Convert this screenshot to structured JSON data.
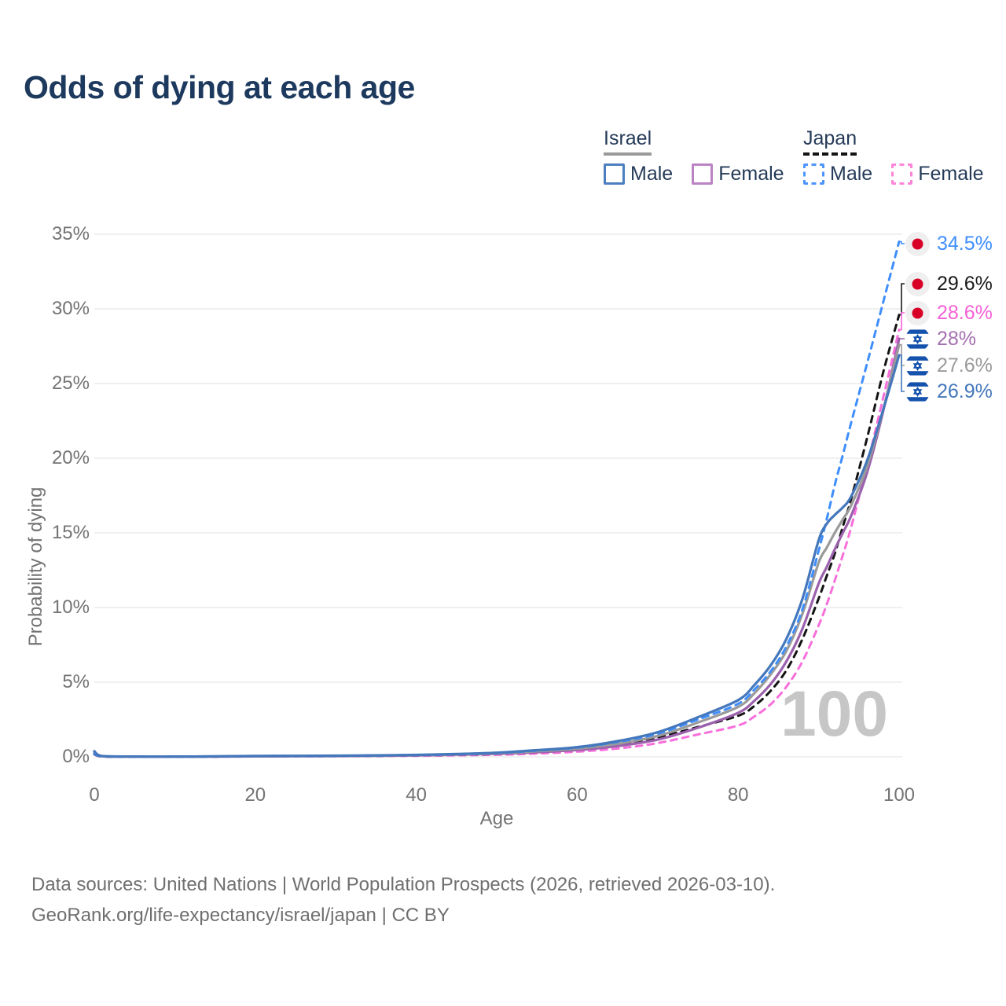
{
  "title": "Odds of dying at each age",
  "legend": {
    "groups": [
      {
        "country": "Israel",
        "line_style": "solid",
        "items": [
          {
            "label": "Male",
            "color": "#4d7fc0"
          },
          {
            "label": "Female",
            "color": "#bb82c4"
          }
        ]
      },
      {
        "country": "Japan",
        "line_style": "dashed",
        "items": [
          {
            "label": "Male",
            "color": "#4d94fb"
          },
          {
            "label": "Female",
            "color": "#fd85d8"
          }
        ]
      }
    ]
  },
  "y_axis": {
    "title": "Probability of dying",
    "ticks": [
      "35%",
      "30%",
      "25%",
      "20%",
      "15%",
      "10%",
      "5%",
      "0%"
    ]
  },
  "x_axis": {
    "title": "Age",
    "ticks": [
      "0",
      "20",
      "40",
      "60",
      "80",
      "100"
    ]
  },
  "watermark": "100",
  "end_labels": [
    {
      "key": "japan_male",
      "value": "34.5%",
      "flag": "japan",
      "color": "#3f8efc"
    },
    {
      "key": "japan_both",
      "value": "29.6%",
      "flag": "japan",
      "color": "#1a1a1a"
    },
    {
      "key": "japan_female",
      "value": "28.6%",
      "flag": "japan",
      "color": "#f65fd6"
    },
    {
      "key": "israel_female",
      "value": "28%",
      "flag": "israel",
      "color": "#a46fb0"
    },
    {
      "key": "israel_both",
      "value": "27.6%",
      "flag": "israel",
      "color": "#9a9a9a"
    },
    {
      "key": "israel_male",
      "value": "26.9%",
      "flag": "israel",
      "color": "#4477bb"
    }
  ],
  "footer": {
    "line1": "Data sources: United Nations | World Population Prospects (2026, retrieved 2026-03-10).",
    "line2": "GeoRank.org/life-expectancy/israel/japan | CC BY"
  },
  "chart_data": {
    "type": "line",
    "title": "Odds of dying at each age",
    "xlabel": "Age",
    "ylabel": "Probability of dying",
    "units": "percent",
    "xlim": [
      0,
      100
    ],
    "ylim": [
      0,
      35
    ],
    "grid": "horizontal-only",
    "legend_position": "top-right",
    "x": [
      0,
      1,
      5,
      10,
      15,
      20,
      25,
      30,
      35,
      40,
      45,
      50,
      55,
      60,
      65,
      70,
      75,
      80,
      82,
      84,
      86,
      88,
      90,
      91,
      92,
      93,
      94,
      96,
      98,
      100
    ],
    "series": [
      {
        "key": "japan_female",
        "name": "Japan Female",
        "color": "#f76fdb",
        "dash": true,
        "end_value": 28.6,
        "values": [
          0.17,
          0.02,
          0.008,
          0.008,
          0.015,
          0.025,
          0.03,
          0.04,
          0.05,
          0.07,
          0.1,
          0.14,
          0.22,
          0.35,
          0.56,
          0.92,
          1.5,
          2.1,
          2.7,
          3.5,
          4.7,
          6.4,
          8.8,
          10.2,
          11.8,
          13.5,
          15.3,
          19.5,
          24.0,
          28.6
        ]
      },
      {
        "key": "japan_both",
        "name": "Japan Both sexes",
        "color": "#141414",
        "dash": true,
        "end_value": 29.6,
        "values": [
          0.19,
          0.025,
          0.01,
          0.01,
          0.02,
          0.04,
          0.05,
          0.055,
          0.07,
          0.1,
          0.14,
          0.2,
          0.32,
          0.5,
          0.8,
          1.3,
          2.0,
          2.75,
          3.4,
          4.4,
          5.8,
          7.9,
          10.6,
          12.1,
          13.6,
          15.4,
          17.2,
          21.3,
          25.7,
          29.6
        ]
      },
      {
        "key": "israel_female",
        "name": "Israel Female",
        "color": "#9c61ad",
        "dash": false,
        "end_value": 28.0,
        "values": [
          0.32,
          0.04,
          0.015,
          0.015,
          0.02,
          0.03,
          0.04,
          0.05,
          0.07,
          0.1,
          0.14,
          0.2,
          0.31,
          0.46,
          0.72,
          1.15,
          1.95,
          2.95,
          3.75,
          4.85,
          6.4,
          8.6,
          11.6,
          12.7,
          13.9,
          15.0,
          16.1,
          19.0,
          23.1,
          28.0
        ]
      },
      {
        "key": "israel_both",
        "name": "Israel Both sexes",
        "color": "#9a9a9a",
        "dash": false,
        "end_value": 27.6,
        "values": [
          0.35,
          0.045,
          0.018,
          0.018,
          0.025,
          0.045,
          0.055,
          0.065,
          0.085,
          0.115,
          0.165,
          0.24,
          0.38,
          0.55,
          0.88,
          1.4,
          2.3,
          3.35,
          4.25,
          5.5,
          7.1,
          9.6,
          13.0,
          14.0,
          15.0,
          15.9,
          16.8,
          19.4,
          23.2,
          27.6
        ]
      },
      {
        "key": "japan_male",
        "name": "Japan Male",
        "color": "#3f8efc",
        "dash": true,
        "end_value": 34.5,
        "values": [
          0.22,
          0.03,
          0.012,
          0.012,
          0.025,
          0.05,
          0.06,
          0.07,
          0.09,
          0.12,
          0.17,
          0.26,
          0.42,
          0.62,
          1.0,
          1.55,
          2.5,
          3.55,
          4.5,
          5.7,
          7.4,
          9.9,
          13.8,
          15.9,
          18.2,
          20.2,
          22.3,
          26.3,
          30.4,
          34.5
        ]
      },
      {
        "key": "israel_male",
        "name": "Israel Male",
        "color": "#4477bb",
        "dash": false,
        "end_value": 26.9,
        "values": [
          0.38,
          0.05,
          0.02,
          0.02,
          0.03,
          0.06,
          0.07,
          0.08,
          0.1,
          0.13,
          0.19,
          0.28,
          0.45,
          0.65,
          1.05,
          1.65,
          2.65,
          3.8,
          4.8,
          6.1,
          7.9,
          10.6,
          14.5,
          15.6,
          16.2,
          16.7,
          17.4,
          19.8,
          23.2,
          26.9
        ]
      }
    ]
  }
}
